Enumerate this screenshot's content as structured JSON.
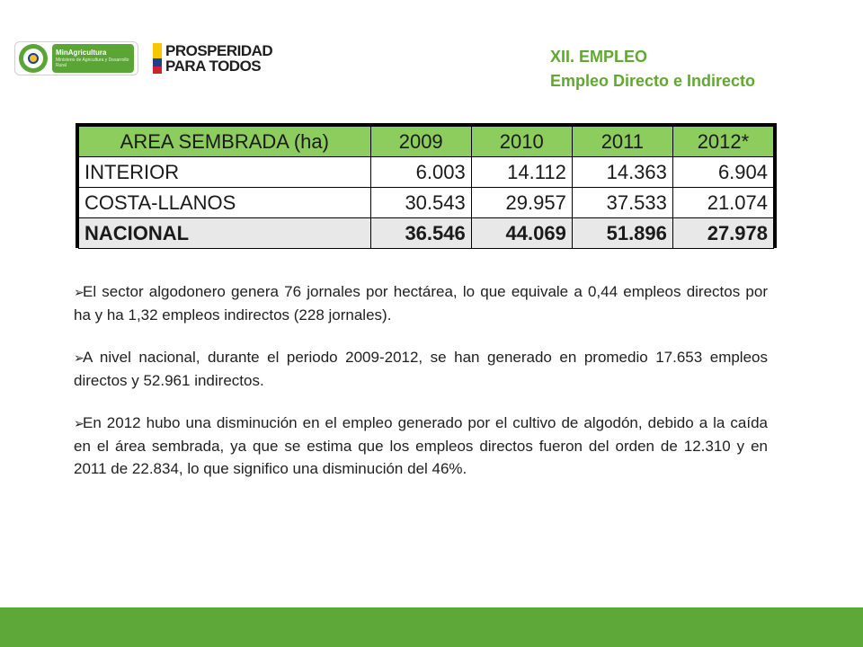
{
  "header": {
    "ministry_logo": {
      "name": "MinAgricultura",
      "subtitle": "Ministerio de Agricultura y Desarrollo Rural",
      "color": "#5aa536"
    },
    "prosperity_logo": {
      "line1": "PROSPERIDAD",
      "line2": "PARA TODOS"
    },
    "section_title": "XII. EMPLEO",
    "section_subtitle": "Empleo Directo e Indirecto"
  },
  "table": {
    "headers": [
      "AREA SEMBRADA (ha)",
      "2009",
      "2010",
      "2011",
      "2012*"
    ],
    "rows": [
      [
        "INTERIOR",
        "6.003",
        "14.112",
        "14.363",
        "6.904"
      ],
      [
        "COSTA-LLANOS",
        "30.543",
        "29.957",
        "37.533",
        "21.074"
      ],
      [
        "NACIONAL",
        "36.546",
        "44.069",
        "51.896",
        "27.978"
      ]
    ]
  },
  "bullets": [
    "El sector algodonero  genera 76  jornales por hectárea, lo que equivale a 0,44 empleos directos por ha y ha 1,32 empleos indirectos (228 jornales).",
    "A nivel nacional, durante el periodo 2009-2012, se han generado en promedio 17.653 empleos directos y 52.961 indirectos.",
    "En 2012 hubo una disminución en el empleo generado por el cultivo de algodón, debido a la caída en el área sembrada, ya que se estima que los empleos directos fueron del orden de 12.310 y en 2011 de 22.834, lo que significo una disminución del 46%."
  ],
  "colors": {
    "accent_green": "#61a830",
    "header_cell": "#8dcd5e",
    "footer_bar": "#5ea83a"
  }
}
